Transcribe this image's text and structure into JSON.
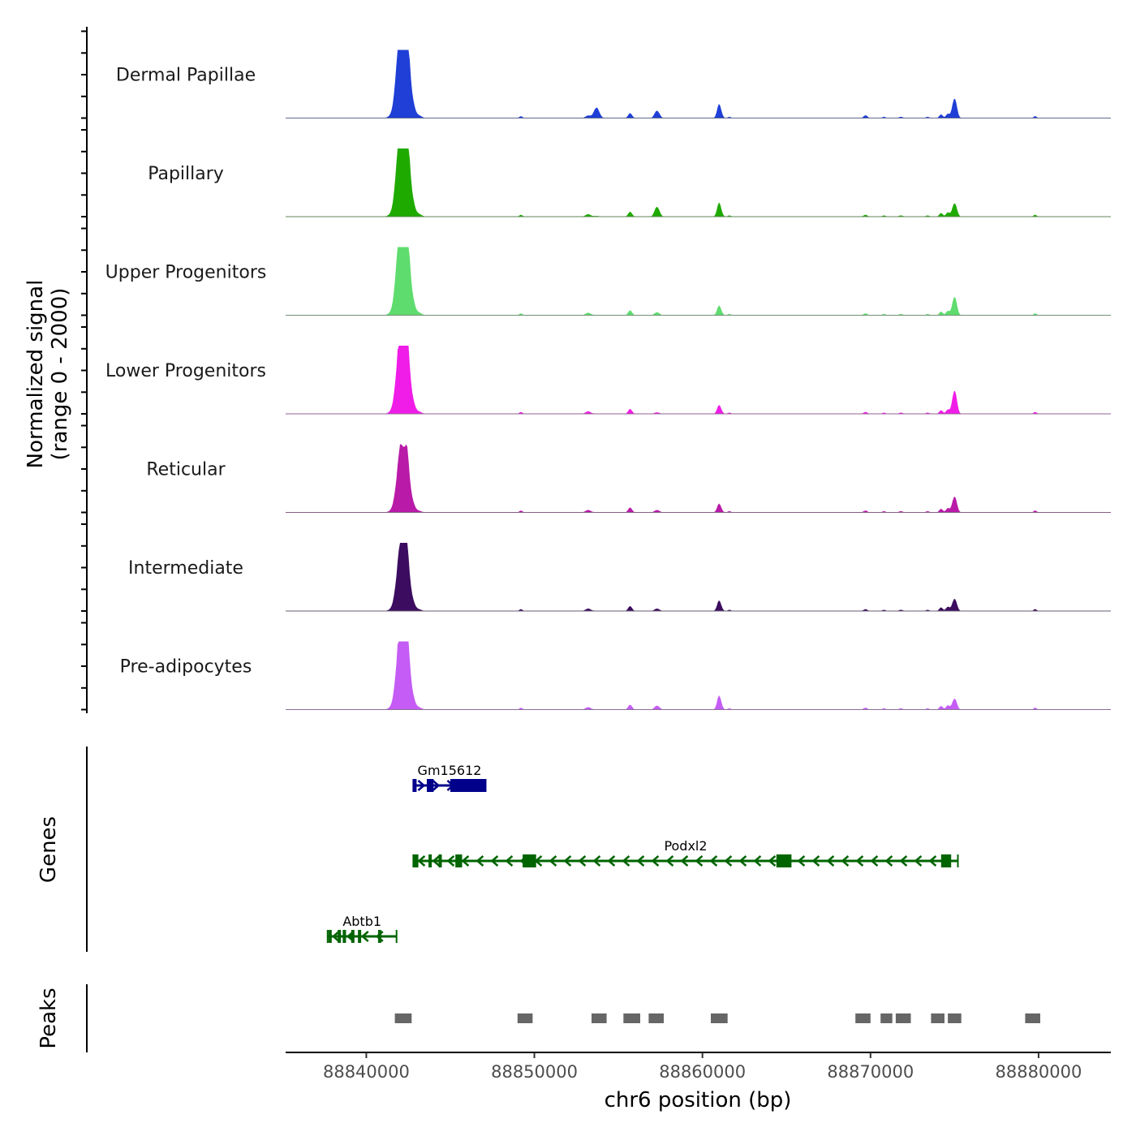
{
  "chart_data": {
    "type": "area",
    "chromosome": "chr6",
    "x_range": [
      88835200,
      88884300
    ],
    "y_range": [
      0,
      2000
    ],
    "xlabel": "chr6 position (bp)",
    "ylabel_line1": "Normalized signal",
    "ylabel_line2": "(range 0 - 2000)",
    "x_ticks": [
      {
        "value": 88840000,
        "label": "88840000"
      },
      {
        "value": 88850000,
        "label": "88850000"
      },
      {
        "value": 88860000,
        "label": "88860000"
      },
      {
        "value": 88870000,
        "label": "88870000"
      },
      {
        "value": 88880000,
        "label": "88880000"
      }
    ],
    "signal_peaks": [
      {
        "pos": 88842000,
        "width": 160,
        "rel": 0.98
      },
      {
        "pos": 88842400,
        "width": 160,
        "rel": 0.96
      },
      {
        "pos": 88842200,
        "width": 340,
        "rel": 0.8
      },
      {
        "pos": 88841700,
        "width": 120,
        "rel": 0.08
      },
      {
        "pos": 88842750,
        "width": 140,
        "rel": 0.06
      },
      {
        "pos": 88843100,
        "width": 200,
        "rel": 0.03
      },
      {
        "pos": 88849200,
        "width": 90,
        "rel": 0.03
      },
      {
        "pos": 88853200,
        "width": 150,
        "rel": 0.04
      },
      {
        "pos": 88853700,
        "width": 160,
        "rel": 0.06
      },
      {
        "pos": 88855700,
        "width": 110,
        "rel": 0.08
      },
      {
        "pos": 88857300,
        "width": 140,
        "rel": 0.08
      },
      {
        "pos": 88861000,
        "width": 120,
        "rel": 0.14
      },
      {
        "pos": 88861600,
        "width": 90,
        "rel": 0.02
      },
      {
        "pos": 88869700,
        "width": 110,
        "rel": 0.03
      },
      {
        "pos": 88870800,
        "width": 100,
        "rel": 0.02
      },
      {
        "pos": 88871800,
        "width": 120,
        "rel": 0.02
      },
      {
        "pos": 88873400,
        "width": 100,
        "rel": 0.02
      },
      {
        "pos": 88874200,
        "width": 100,
        "rel": 0.06
      },
      {
        "pos": 88874600,
        "width": 100,
        "rel": 0.07
      },
      {
        "pos": 88875000,
        "width": 130,
        "rel": 0.2
      },
      {
        "pos": 88879800,
        "width": 90,
        "rel": 0.03
      }
    ],
    "tracks": [
      {
        "name": "Dermal Papillae",
        "color": "#1f3fd6",
        "peak_scale": 1.0,
        "mods": {
          "88853700": 2.8,
          "88857300": 1.5,
          "88861000": 1.6,
          "88875000": 1.6,
          "88869700": 1.5
        }
      },
      {
        "name": "Papillary",
        "color": "#1faa00",
        "peak_scale": 1.0,
        "mods": {
          "88853700": 0.2,
          "88857300": 2.0,
          "88861000": 1.6,
          "88875000": 1.1
        }
      },
      {
        "name": "Upper Progenitors",
        "color": "#5fdc6e",
        "peak_scale": 1.0,
        "mods": {
          "88853700": 0.1,
          "88857300": 0.6,
          "88861000": 1.1,
          "88875000": 1.5
        }
      },
      {
        "name": "Lower Progenitors",
        "color": "#f01ce8",
        "peak_scale": 0.84,
        "mods": {
          "88853700": 0.1,
          "88857300": 0.3,
          "88861000": 1.0,
          "88875000": 1.9
        }
      },
      {
        "name": "Reticular",
        "color": "#b91aa8",
        "peak_scale": 0.62,
        "mods": {
          "88853700": 0.1,
          "88857300": 0.5,
          "88861000": 1.0,
          "88875000": 1.3
        }
      },
      {
        "name": "Intermediate",
        "color": "#3b0c5f",
        "peak_scale": 0.65,
        "mods": {
          "88853700": 0.1,
          "88857300": 0.5,
          "88861000": 1.2,
          "88875000": 1.0
        }
      },
      {
        "name": "Pre-adipocytes",
        "color": "#c45cf5",
        "peak_scale": 0.86,
        "mods": {
          "88853700": 0.1,
          "88857300": 0.8,
          "88861000": 1.6,
          "88875000": 0.9
        }
      }
    ],
    "genes_title": "Genes",
    "genes": [
      {
        "name": "Gm15612",
        "color": "#00008b",
        "strand": "+",
        "start": 88842800,
        "end": 88847100,
        "exons": [
          [
            88842800,
            88842950
          ],
          [
            88843600,
            88844000
          ],
          [
            88845000,
            88847100
          ]
        ]
      },
      {
        "name": "Podxl2",
        "color": "#006400",
        "strand": "-",
        "start": 88842800,
        "end": 88875200,
        "exons": [
          [
            88842800,
            88843100
          ],
          [
            88843700,
            88843800
          ],
          [
            88844300,
            88844400
          ],
          [
            88845300,
            88845700
          ],
          [
            88849300,
            88850100
          ],
          [
            88864400,
            88865300
          ],
          [
            88874200,
            88874800
          ]
        ]
      },
      {
        "name": "Abtb1",
        "color": "#006400",
        "strand": "-",
        "start": 88837700,
        "end": 88841800,
        "exons": [
          [
            88837750,
            88837900
          ],
          [
            88838300,
            88838400
          ],
          [
            88838600,
            88838700
          ],
          [
            88839100,
            88839200
          ],
          [
            88839500,
            88839600
          ],
          [
            88840700,
            88840800
          ]
        ]
      }
    ],
    "peaks_title": "Peaks",
    "peaks": [
      [
        88841700,
        88842700
      ],
      [
        88849000,
        88849900
      ],
      [
        88853400,
        88854300
      ],
      [
        88855300,
        88856300
      ],
      [
        88856800,
        88857700
      ],
      [
        88860500,
        88861500
      ],
      [
        88869100,
        88870000
      ],
      [
        88870600,
        88871300
      ],
      [
        88871500,
        88872400
      ],
      [
        88873600,
        88874400
      ],
      [
        88874600,
        88875400
      ],
      [
        88879200,
        88880100
      ]
    ]
  }
}
